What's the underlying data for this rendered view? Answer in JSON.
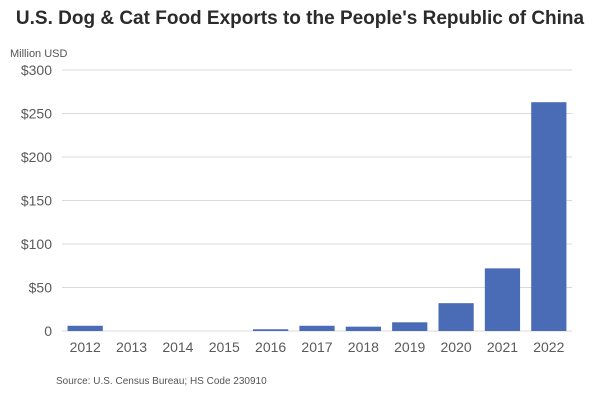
{
  "chart_data": {
    "type": "bar",
    "title": "U.S. Dog & Cat Food Exports to the People's Republic of China",
    "ylabel": "Million USD",
    "categories": [
      "2012",
      "2013",
      "2014",
      "2015",
      "2016",
      "2017",
      "2018",
      "2019",
      "2020",
      "2021",
      "2022"
    ],
    "values": [
      6,
      0,
      0,
      0,
      2,
      6,
      5,
      10,
      32,
      72,
      263
    ],
    "ylim": [
      0,
      300
    ],
    "yticks": [
      0,
      50,
      100,
      150,
      200,
      250,
      300
    ],
    "ytick_labels": [
      "0",
      "$50",
      "$100",
      "$150",
      "$200",
      "$250",
      "$300"
    ],
    "grid": true,
    "bar_color": "#4a6cb7",
    "grid_color": "#d9d9d9",
    "source": "Source: U.S. Census Bureau; HS Code 230910"
  }
}
